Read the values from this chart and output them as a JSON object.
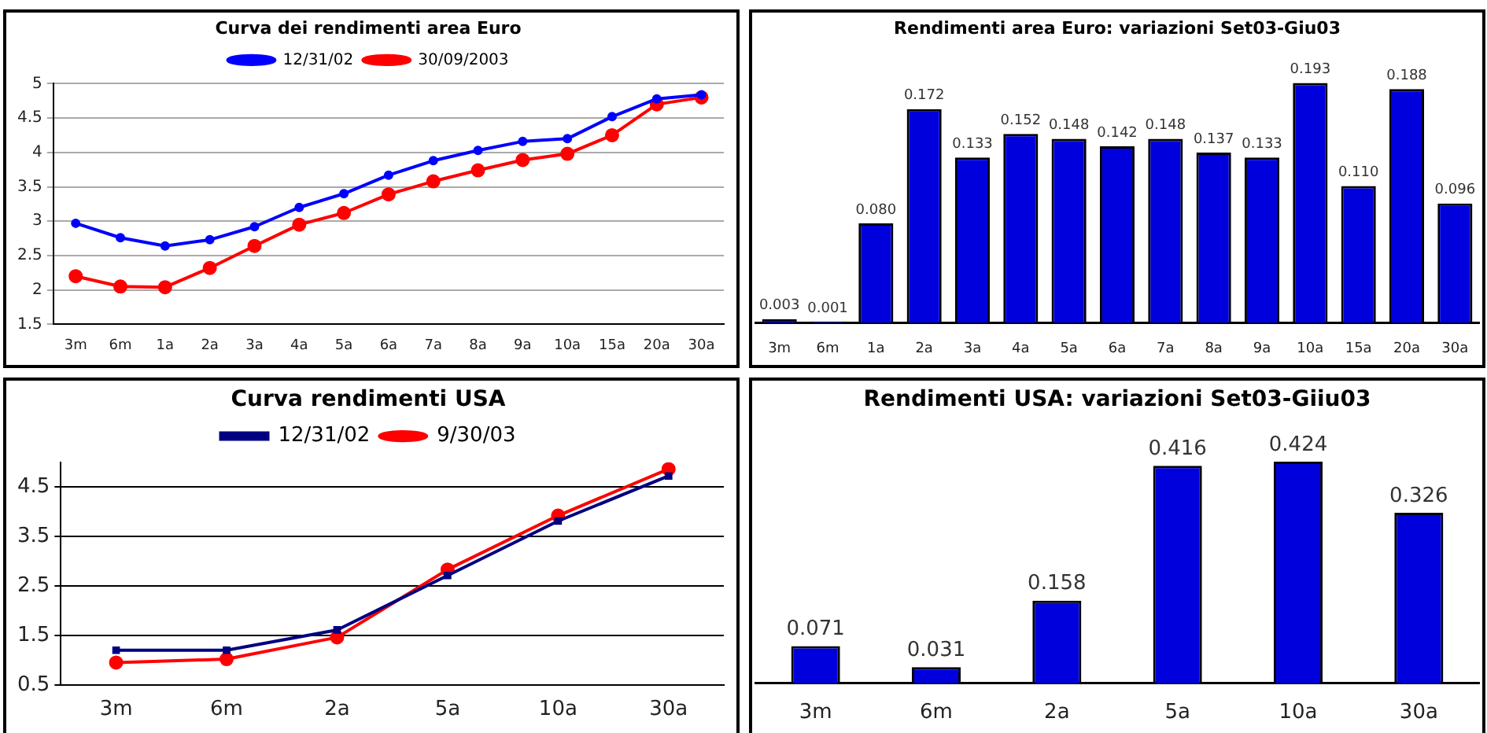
{
  "chart_data": [
    {
      "type": "line",
      "title": "Curva dei rendimenti area Euro",
      "categories": [
        "3m",
        "6m",
        "1a",
        "2a",
        "3a",
        "4a",
        "5a",
        "6a",
        "7a",
        "8a",
        "9a",
        "10a",
        "15a",
        "20a",
        "30a"
      ],
      "series": [
        {
          "name": "12/31/02",
          "color": "#0000ff",
          "values": [
            2.97,
            2.76,
            2.64,
            2.73,
            2.92,
            3.2,
            3.4,
            3.67,
            3.88,
            4.03,
            4.16,
            4.2,
            4.52,
            4.78,
            4.84
          ]
        },
        {
          "name": "30/09/2003",
          "color": "#ff0000",
          "values": [
            2.2,
            2.05,
            2.04,
            2.32,
            2.64,
            2.95,
            3.12,
            3.39,
            3.58,
            3.74,
            3.89,
            3.98,
            4.25,
            4.7,
            4.8
          ]
        }
      ],
      "ylim": [
        1.5,
        5
      ],
      "yticks": [
        1.5,
        2,
        2.5,
        3,
        3.5,
        4,
        4.5,
        5
      ],
      "grid": "y",
      "legend": "top",
      "marker": "circle"
    },
    {
      "type": "bar",
      "title": "Rendimenti area Euro: variazioni Set03-Giu03",
      "categories": [
        "3m",
        "6m",
        "1a",
        "2a",
        "3a",
        "4a",
        "5a",
        "6a",
        "7a",
        "8a",
        "9a",
        "10a",
        "15a",
        "20a",
        "30a"
      ],
      "values": [
        0.003,
        0.001,
        0.08,
        0.172,
        0.133,
        0.152,
        0.148,
        0.142,
        0.148,
        0.137,
        0.133,
        0.193,
        0.11,
        0.188,
        0.096
      ],
      "value_labels": [
        "0.003",
        "0.001",
        "0.080",
        "0.172",
        "0.133",
        "0.152",
        "0.148",
        "0.142",
        "0.148",
        "0.137",
        "0.133",
        "0.193",
        "0.110",
        "0.188",
        "0.096"
      ],
      "color": "#0000dd"
    },
    {
      "type": "line",
      "title": "Curva rendimenti USA",
      "categories": [
        "3m",
        "6m",
        "2a",
        "5a",
        "10a",
        "30a"
      ],
      "series": [
        {
          "name": "12/31/02",
          "color": "#000080",
          "marker": "square",
          "values": [
            1.2,
            1.2,
            1.61,
            2.71,
            3.81,
            4.72
          ]
        },
        {
          "name": "9/30/03",
          "color": "#ff0000",
          "marker": "circle",
          "values": [
            0.95,
            1.02,
            1.46,
            2.83,
            3.92,
            4.86
          ]
        }
      ],
      "ylim": [
        0.5,
        5
      ],
      "yticks": [
        0.5,
        1.5,
        2.5,
        3.5,
        4.5
      ],
      "grid": "y",
      "legend": "top"
    },
    {
      "type": "bar",
      "title": "Rendimenti USA: variazioni Set03-Giiu03",
      "categories": [
        "3m",
        "6m",
        "2a",
        "5a",
        "10a",
        "30a"
      ],
      "values": [
        0.071,
        0.031,
        0.158,
        0.416,
        0.424,
        0.326
      ],
      "value_labels": [
        "0.071",
        "0.031",
        "0.158",
        "0.416",
        "0.424",
        "0.326"
      ],
      "color": "#0000dd"
    }
  ]
}
